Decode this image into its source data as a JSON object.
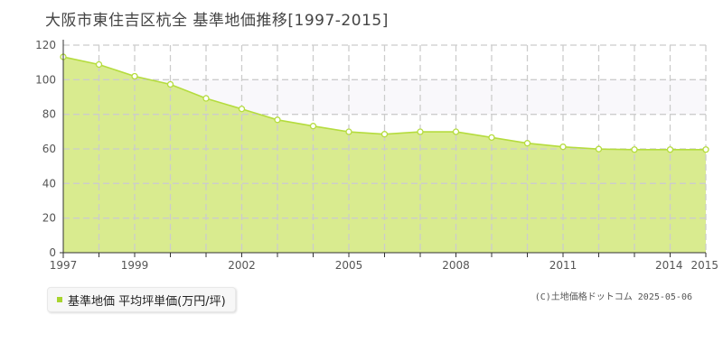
{
  "title": "大阪市東住吉区杭全 基準地価推移[1997-2015]",
  "legend_label": "基準地価 平均坪単価(万円/坪)",
  "credit": "(C)土地価格ドットコム 2025-05-06",
  "colors": {
    "area_fill": "#d9eb8f",
    "line": "#b5dc3e",
    "marker_stroke": "#b5dc3e",
    "marker_fill": "#ffffff",
    "grid": "#cccccc",
    "highlight_band": "#f9f8fb",
    "legend_marker": "#a8d42e"
  },
  "chart_data": {
    "type": "area",
    "x": [
      1997,
      1998,
      1999,
      2000,
      2001,
      2002,
      2003,
      2004,
      2005,
      2006,
      2007,
      2008,
      2009,
      2010,
      2011,
      2012,
      2013,
      2014,
      2015
    ],
    "series": [
      {
        "name": "基準地価 平均坪単価(万円/坪)",
        "values": [
          113.2,
          108.8,
          102.0,
          97.3,
          89.2,
          83.1,
          76.8,
          73.2,
          69.9,
          68.5,
          69.9,
          69.9,
          66.6,
          63.3,
          61.2,
          59.9,
          59.6,
          59.6,
          59.6
        ]
      }
    ],
    "x_tick_labels": [
      "1997",
      "1999",
      "2002",
      "2005",
      "2008",
      "2011",
      "2014",
      "2015"
    ],
    "y_ticks": [
      0,
      20,
      40,
      60,
      80,
      100,
      120
    ],
    "ylim": [
      0,
      120
    ],
    "xlim": [
      1997,
      2015
    ],
    "highlight_band_y": [
      80,
      100
    ],
    "grid": true
  }
}
